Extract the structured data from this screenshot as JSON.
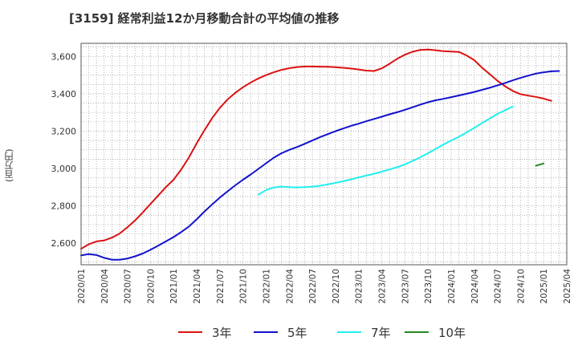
{
  "chart_data": {
    "type": "line",
    "title": "[3159]  経常利益12か月移動合計の平均値の推移",
    "ylabel": "(百万円)",
    "xlabel": "",
    "ylim": [
      2485,
      3670
    ],
    "grid": true,
    "legend_position": "bottom",
    "yticks": [
      2600,
      2800,
      3000,
      3200,
      3400,
      3600
    ],
    "ytick_labels": [
      "2,600",
      "2,800",
      "3,000",
      "3,200",
      "3,400",
      "3,600"
    ],
    "xticks": [
      "2020/01",
      "2020/04",
      "2020/07",
      "2020/10",
      "2021/01",
      "2021/04",
      "2021/07",
      "2021/10",
      "2022/01",
      "2022/04",
      "2022/07",
      "2022/10",
      "2023/01",
      "2023/04",
      "2023/07",
      "2023/10",
      "2024/01",
      "2024/04",
      "2024/07",
      "2024/10",
      "2025/01",
      "2025/04"
    ],
    "series": [
      {
        "name": "3年",
        "color": "#dd1111",
        "start": "2020/01",
        "values": [
          2570,
          2595,
          2610,
          2615,
          2630,
          2652,
          2685,
          2722,
          2765,
          2810,
          2855,
          2900,
          2940,
          2995,
          3060,
          3135,
          3205,
          3270,
          3325,
          3370,
          3405,
          3435,
          3460,
          3482,
          3500,
          3515,
          3528,
          3537,
          3543,
          3546,
          3546,
          3545,
          3544,
          3542,
          3539,
          3535,
          3530,
          3524,
          3522,
          3536,
          3560,
          3587,
          3609,
          3625,
          3635,
          3637,
          3633,
          3628,
          3626,
          3624,
          3605,
          3580,
          3540,
          3505,
          3470,
          3440,
          3415,
          3398,
          3390,
          3383,
          3374,
          3362
        ]
      },
      {
        "name": "5年",
        "color": "#1111cc",
        "start": "2020/01",
        "values": [
          2535,
          2542,
          2537,
          2522,
          2512,
          2512,
          2518,
          2530,
          2545,
          2565,
          2587,
          2610,
          2633,
          2660,
          2690,
          2728,
          2770,
          2808,
          2845,
          2878,
          2910,
          2940,
          2968,
          2998,
          3028,
          3058,
          3082,
          3100,
          3115,
          3132,
          3150,
          3168,
          3184,
          3200,
          3214,
          3228,
          3240,
          3253,
          3265,
          3277,
          3290,
          3301,
          3314,
          3328,
          3342,
          3355,
          3365,
          3373,
          3382,
          3391,
          3400,
          3410,
          3421,
          3432,
          3445,
          3458,
          3472,
          3485,
          3497,
          3508,
          3515,
          3520,
          3522
        ]
      },
      {
        "name": "7年",
        "color": "#22eeee",
        "start": "2021/12",
        "values": [
          2860,
          2885,
          2898,
          2903,
          2900,
          2899,
          2900,
          2903,
          2908,
          2915,
          2923,
          2932,
          2942,
          2952,
          2962,
          2972,
          2983,
          2995,
          3007,
          3022,
          3040,
          3060,
          3082,
          3105,
          3128,
          3150,
          3170,
          3193,
          3218,
          3243,
          3268,
          3292,
          3312,
          3332
        ]
      },
      {
        "name": "10年",
        "color": "#228822",
        "start": "2024/12",
        "values": [
          3015,
          3027
        ]
      }
    ]
  }
}
